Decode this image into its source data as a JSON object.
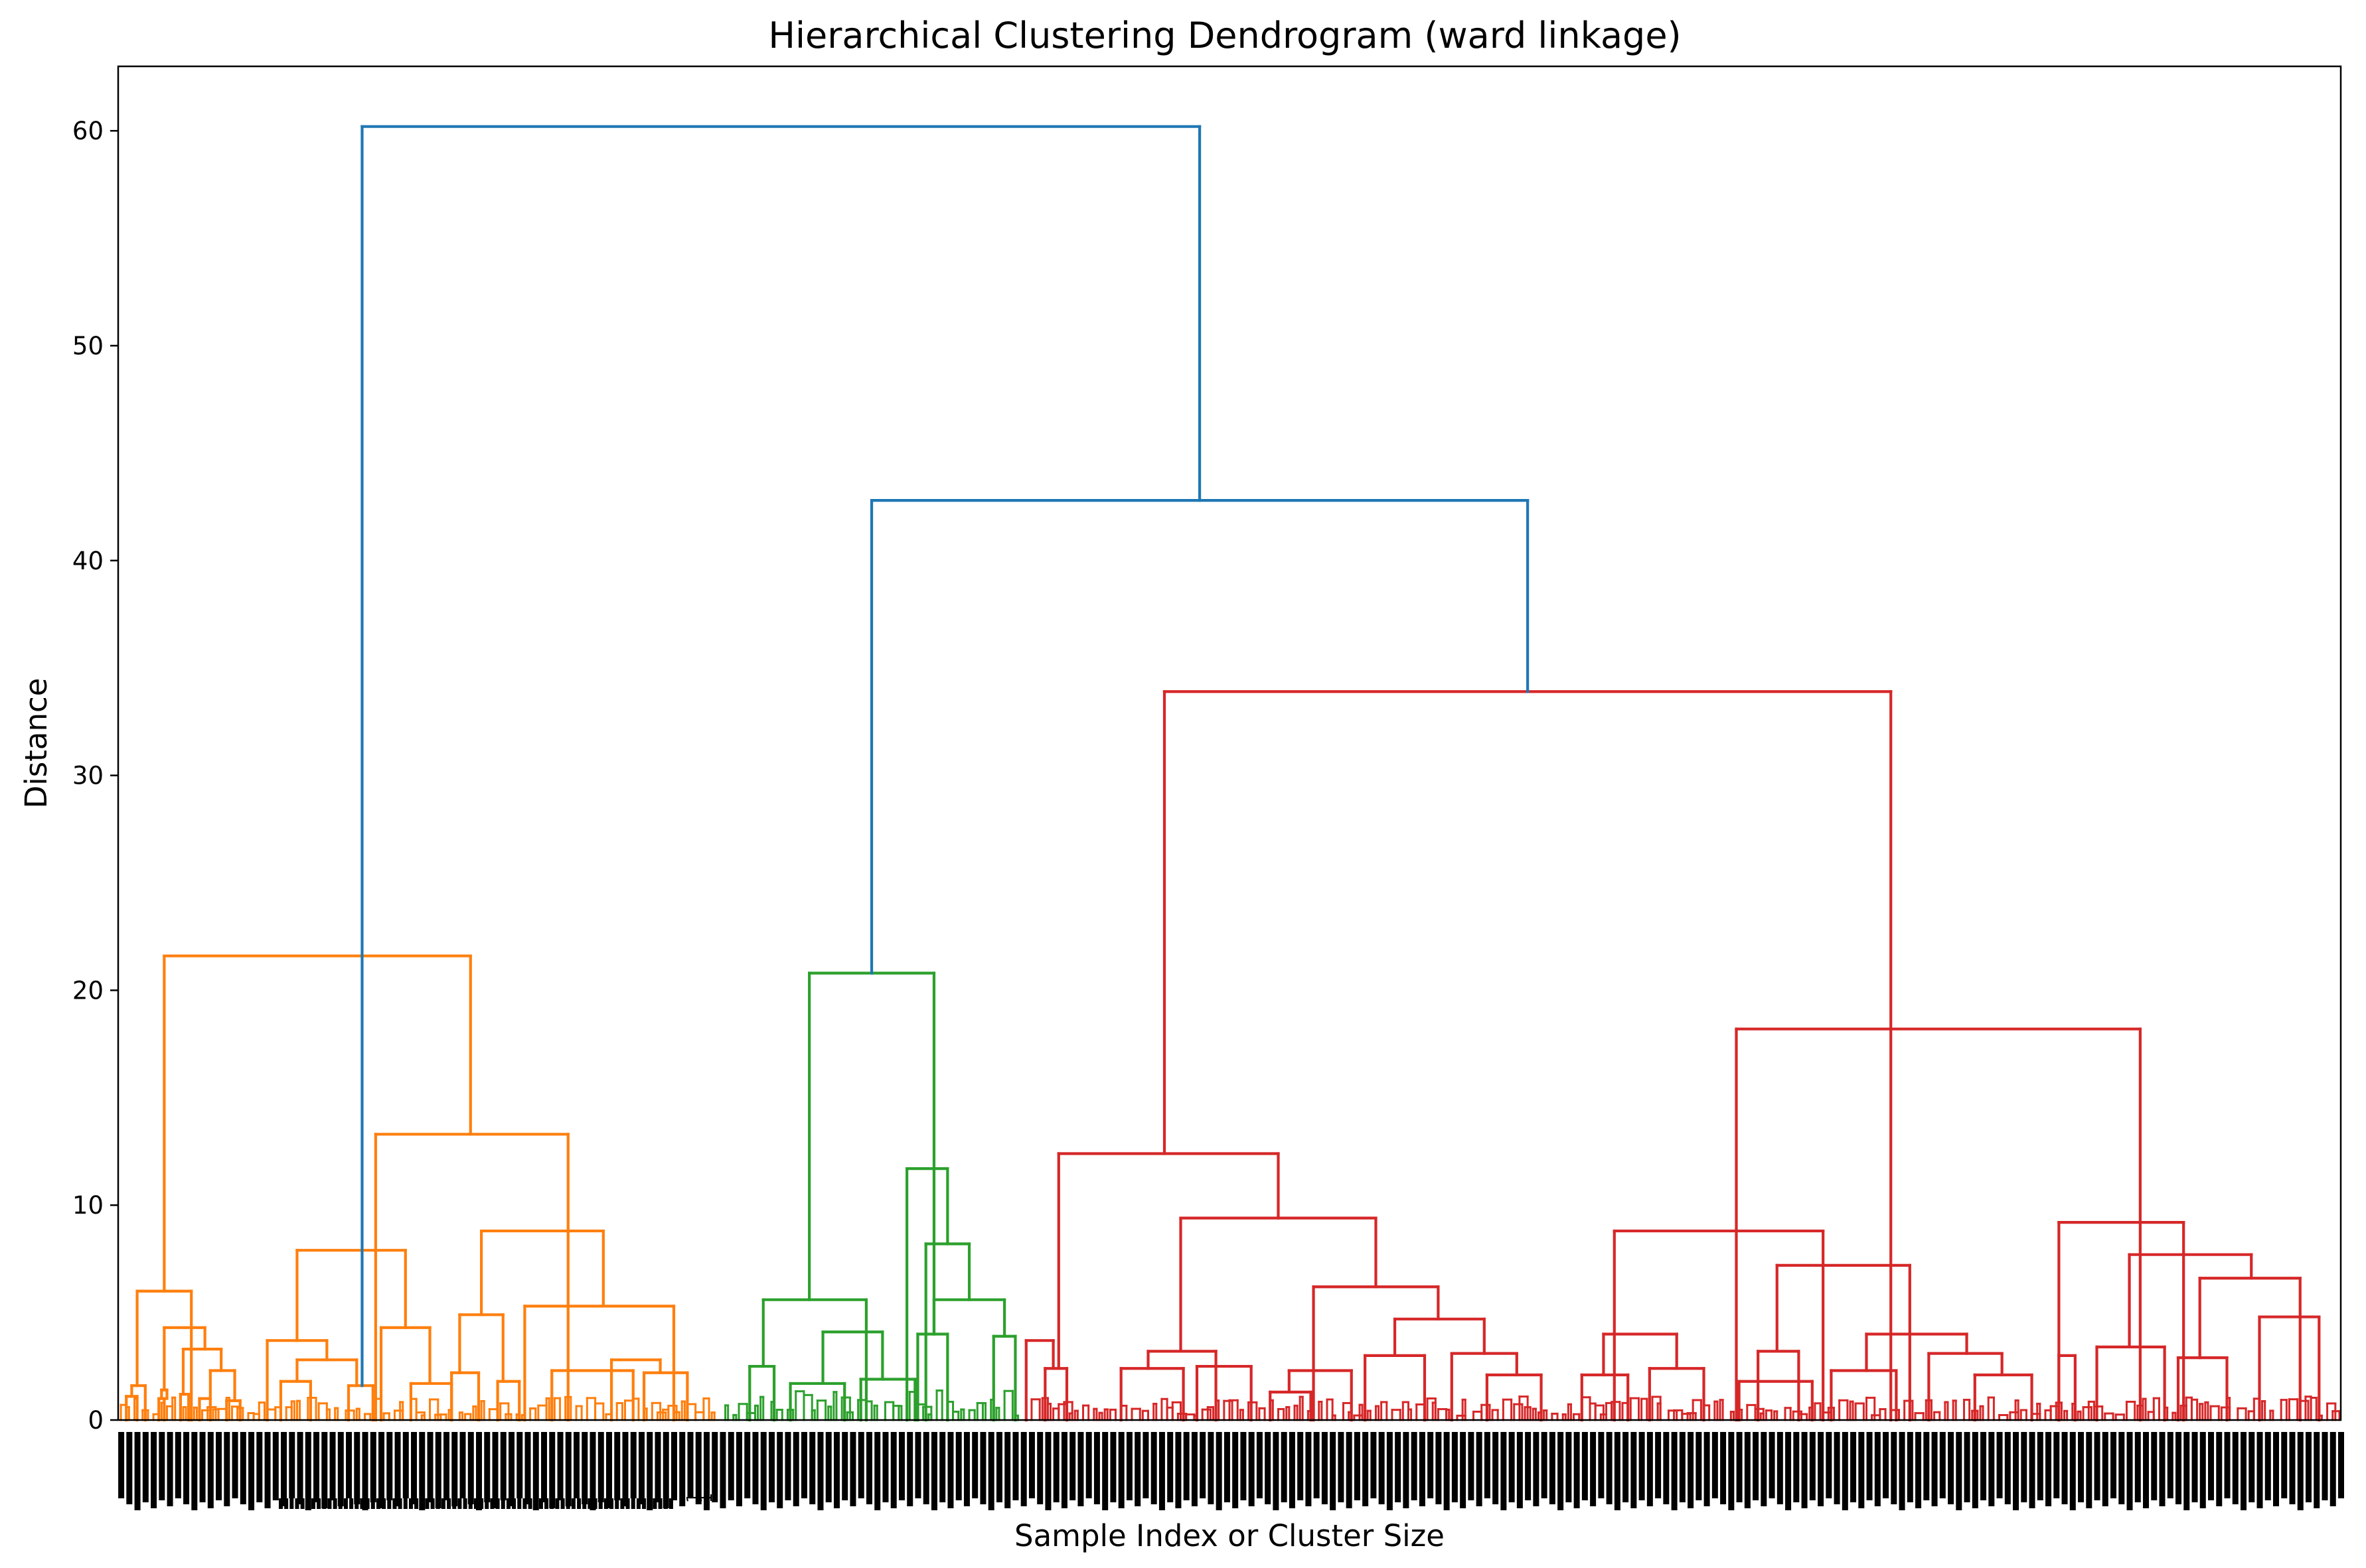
{
  "chart_data": {
    "type": "dendrogram",
    "title": "Hierarchical Clustering Dendrogram (ward linkage)",
    "xlabel": "Sample Index or Cluster Size",
    "ylabel": "Distance",
    "ylim": [
      0,
      63
    ],
    "yticks": [
      0,
      10,
      20,
      30,
      40,
      50,
      60
    ],
    "grid": false,
    "legend": "none",
    "colors": {
      "orange": "#ff7f0e",
      "green": "#2ca02c",
      "red": "#d62728",
      "blue": "#1f77b4",
      "axis": "#000000"
    },
    "merges": [
      {
        "left": 7.0,
        "right": 27.0,
        "height": 6.0,
        "color": "orange",
        "children": [
          {
            "x": 1.5,
            "h": 1.0
          },
          {
            "x": 8.0,
            "h": 1.5
          },
          {
            "x": 11.0,
            "h": 1.0
          },
          {
            "x": 14.0,
            "h": 0.6
          }
        ]
      },
      {
        "left": 17.0,
        "right": 32.0,
        "height": 4.3,
        "color": "orange"
      },
      {
        "left": 24.0,
        "right": 38.0,
        "height": 3.3,
        "color": "orange"
      },
      {
        "left": 34.0,
        "right": 43.0,
        "height": 2.3,
        "color": "orange"
      },
      {
        "left": 5.0,
        "right": 10.0,
        "height": 1.6,
        "color": "orange"
      },
      {
        "left": 3.0,
        "right": 7.0,
        "height": 1.1,
        "color": "orange"
      },
      {
        "left": 16.0,
        "right": 18.0,
        "height": 1.4,
        "color": "orange"
      },
      {
        "left": 15.0,
        "right": 17.0,
        "height": 1.0,
        "color": "orange"
      },
      {
        "left": 23.0,
        "right": 26.0,
        "height": 1.2,
        "color": "orange"
      },
      {
        "left": 30.0,
        "right": 34.0,
        "height": 1.0,
        "color": "orange"
      },
      {
        "left": 40.0,
        "right": 45.0,
        "height": 0.9,
        "color": "orange"
      },
      {
        "left": 66.0,
        "right": 106.0,
        "height": 7.9,
        "color": "orange"
      },
      {
        "left": 55.0,
        "right": 77.0,
        "height": 3.7,
        "color": "orange"
      },
      {
        "left": 66.0,
        "right": 88.0,
        "height": 2.8,
        "color": "orange"
      },
      {
        "left": 60.0,
        "right": 71.0,
        "height": 1.8,
        "color": "orange"
      },
      {
        "left": 97.0,
        "right": 115.0,
        "height": 4.3,
        "color": "orange"
      },
      {
        "left": 108.0,
        "right": 123.0,
        "height": 1.7,
        "color": "orange"
      },
      {
        "left": 85.0,
        "right": 94.0,
        "height": 1.6,
        "color": "orange"
      },
      {
        "left": 134.0,
        "right": 179.0,
        "height": 8.8,
        "color": "orange"
      },
      {
        "left": 126.0,
        "right": 142.0,
        "height": 4.9,
        "color": "orange"
      },
      {
        "left": 150.0,
        "right": 205.0,
        "height": 5.3,
        "color": "orange"
      },
      {
        "left": 160.0,
        "right": 190.0,
        "height": 2.3,
        "color": "orange"
      },
      {
        "left": 182.0,
        "right": 200.0,
        "height": 2.8,
        "color": "orange"
      },
      {
        "left": 194.0,
        "right": 210.0,
        "height": 2.2,
        "color": "orange"
      },
      {
        "left": 123.0,
        "right": 133.0,
        "height": 2.2,
        "color": "orange"
      },
      {
        "left": 140.0,
        "right": 148.0,
        "height": 1.8,
        "color": "orange"
      },
      {
        "left": 95.0,
        "right": 166.0,
        "height": 13.3,
        "color": "orange"
      },
      {
        "left": 17.0,
        "right": 130.0,
        "height": 21.6,
        "color": "orange"
      },
      {
        "left": 238.0,
        "right": 276.0,
        "height": 5.6,
        "color": "green"
      },
      {
        "left": 233.0,
        "right": 242.0,
        "height": 2.5,
        "color": "green"
      },
      {
        "left": 260.0,
        "right": 282.0,
        "height": 4.1,
        "color": "green"
      },
      {
        "left": 248.0,
        "right": 268.0,
        "height": 1.7,
        "color": "green"
      },
      {
        "left": 274.0,
        "right": 294.0,
        "height": 1.9,
        "color": "green"
      },
      {
        "left": 291.0,
        "right": 306.0,
        "height": 11.7,
        "color": "green"
      },
      {
        "left": 298.0,
        "right": 314.0,
        "height": 8.2,
        "color": "green"
      },
      {
        "left": 301.0,
        "right": 327.0,
        "height": 5.6,
        "color": "green"
      },
      {
        "left": 295.0,
        "right": 306.0,
        "height": 4.0,
        "color": "green"
      },
      {
        "left": 323.0,
        "right": 331.0,
        "height": 3.9,
        "color": "green"
      },
      {
        "left": 255.0,
        "right": 301.0,
        "height": 20.8,
        "color": "green"
      },
      {
        "left": 335.0,
        "right": 345.0,
        "height": 3.7,
        "color": "red"
      },
      {
        "left": 342.0,
        "right": 350.0,
        "height": 2.4,
        "color": "red"
      },
      {
        "left": 380.0,
        "right": 405.0,
        "height": 3.2,
        "color": "red"
      },
      {
        "left": 370.0,
        "right": 393.0,
        "height": 2.4,
        "color": "red"
      },
      {
        "left": 398.0,
        "right": 418.0,
        "height": 2.5,
        "color": "red"
      },
      {
        "left": 441.0,
        "right": 487.0,
        "height": 6.2,
        "color": "red"
      },
      {
        "left": 432.0,
        "right": 455.0,
        "height": 2.3,
        "color": "red"
      },
      {
        "left": 425.0,
        "right": 440.0,
        "height": 1.3,
        "color": "red"
      },
      {
        "left": 471.0,
        "right": 504.0,
        "height": 4.7,
        "color": "red"
      },
      {
        "left": 460.0,
        "right": 482.0,
        "height": 3.0,
        "color": "red"
      },
      {
        "left": 492.0,
        "right": 516.0,
        "height": 3.1,
        "color": "red"
      },
      {
        "left": 505.0,
        "right": 525.0,
        "height": 2.1,
        "color": "red"
      },
      {
        "left": 392.0,
        "right": 464.0,
        "height": 9.4,
        "color": "red"
      },
      {
        "left": 347.0,
        "right": 428.0,
        "height": 12.4,
        "color": "red"
      },
      {
        "left": 548.0,
        "right": 575.0,
        "height": 4.0,
        "color": "red"
      },
      {
        "left": 540.0,
        "right": 557.0,
        "height": 2.1,
        "color": "red"
      },
      {
        "left": 565.0,
        "right": 585.0,
        "height": 2.4,
        "color": "red"
      },
      {
        "left": 552.0,
        "right": 629.0,
        "height": 8.8,
        "color": "red"
      },
      {
        "left": 612.0,
        "right": 661.0,
        "height": 7.2,
        "color": "red"
      },
      {
        "left": 598.0,
        "right": 625.0,
        "height": 1.8,
        "color": "red"
      },
      {
        "left": 605.0,
        "right": 620.0,
        "height": 3.2,
        "color": "red"
      },
      {
        "left": 645.0,
        "right": 682.0,
        "height": 4.0,
        "color": "red"
      },
      {
        "left": 632.0,
        "right": 656.0,
        "height": 2.3,
        "color": "red"
      },
      {
        "left": 668.0,
        "right": 695.0,
        "height": 3.1,
        "color": "red"
      },
      {
        "left": 685.0,
        "right": 706.0,
        "height": 2.1,
        "color": "red"
      },
      {
        "left": 716.0,
        "right": 762.0,
        "height": 9.2,
        "color": "red"
      },
      {
        "left": 742.0,
        "right": 787.0,
        "height": 7.7,
        "color": "red"
      },
      {
        "left": 730.0,
        "right": 755.0,
        "height": 3.4,
        "color": "red"
      },
      {
        "left": 768.0,
        "right": 805.0,
        "height": 6.6,
        "color": "red"
      },
      {
        "left": 790.0,
        "right": 812.0,
        "height": 4.8,
        "color": "red"
      },
      {
        "left": 760.0,
        "right": 778.0,
        "height": 2.9,
        "color": "red"
      },
      {
        "left": 716.0,
        "right": 722.0,
        "height": 3.0,
        "color": "red"
      },
      {
        "left": 597.0,
        "right": 746.0,
        "height": 18.2,
        "color": "red"
      },
      {
        "left": 386.0,
        "right": 654.0,
        "height": 33.9,
        "color": "red"
      },
      {
        "left": 278.0,
        "right": 520.0,
        "height": 42.8,
        "color": "blue"
      },
      {
        "left": 90.0,
        "right": 399.0,
        "height": 60.2,
        "color": "blue"
      }
    ],
    "leaf_count": 820,
    "x_range": [
      0,
      820
    ],
    "cluster_colors": [
      "orange",
      "green",
      "red"
    ],
    "cluster_ranges": [
      [
        0,
        223
      ],
      [
        223,
        336
      ],
      [
        336,
        820
      ]
    ],
    "trailing_leaf_labels": [
      "1",
      "1"
    ]
  }
}
